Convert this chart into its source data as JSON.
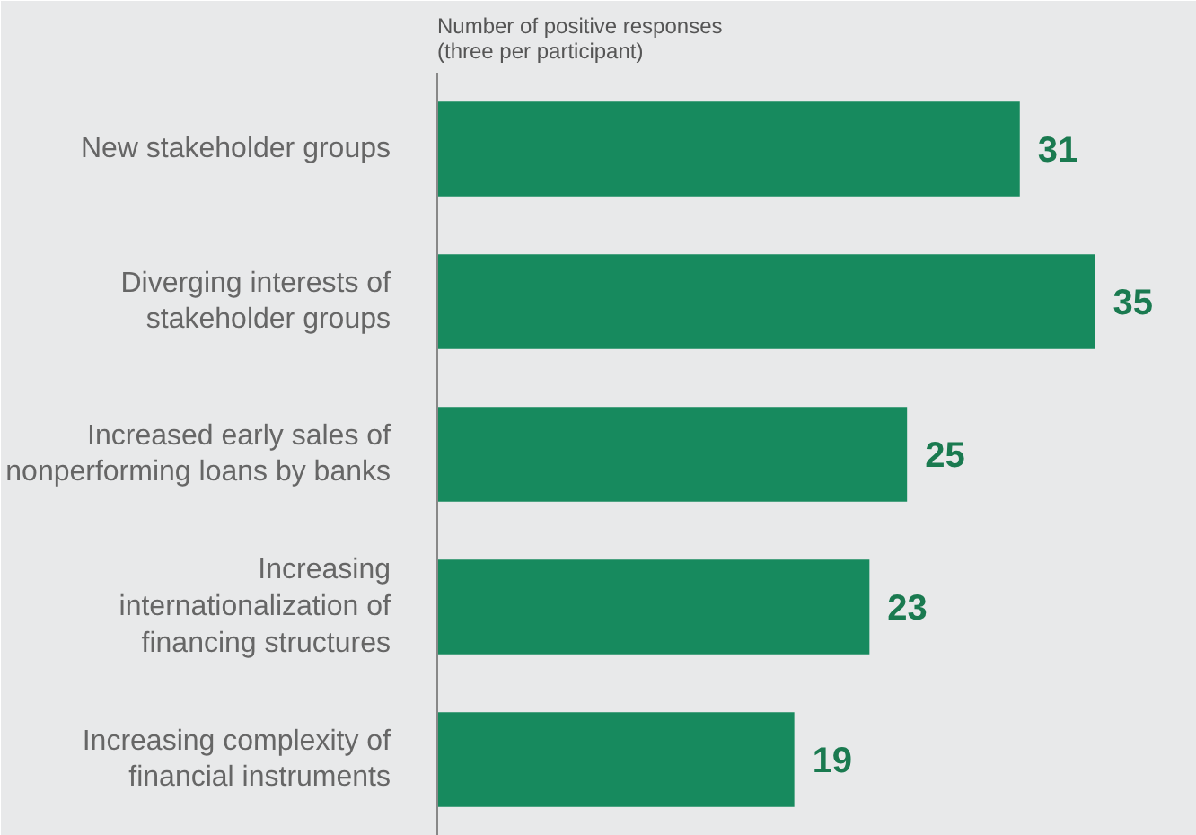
{
  "chart_data": {
    "type": "bar",
    "orientation": "horizontal",
    "title": "Number of positive responses (three per participant)",
    "categories": [
      "New stakeholder groups",
      "Diverging interests of stakeholder groups",
      "Increased early sales of nonperforming loans by banks",
      "Increasing internationalization of financing structures",
      "Increasing complexity of financial instruments"
    ],
    "values": [
      31,
      35,
      25,
      23,
      19
    ],
    "color": "#178a5e",
    "data_labels": true,
    "tick_labels": "y"
  }
}
